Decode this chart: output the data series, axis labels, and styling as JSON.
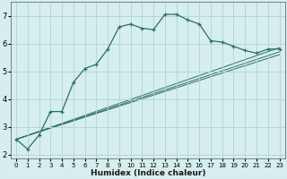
{
  "xlabel": "Humidex (Indice chaleur)",
  "background_color": "#d6eeee",
  "grid_color": "#aed4d4",
  "line_color": "#2a6e68",
  "xlim": [
    -0.5,
    23.5
  ],
  "ylim": [
    1.85,
    7.5
  ],
  "yticks": [
    2,
    3,
    4,
    5,
    6,
    7
  ],
  "curve1_x": [
    0,
    1,
    2,
    3,
    4,
    5,
    6,
    7,
    8,
    9,
    10,
    11,
    12,
    13,
    14,
    15,
    16,
    17,
    18,
    19,
    20,
    21,
    22,
    23
  ],
  "curve1_y": [
    2.55,
    2.2,
    2.7,
    3.55,
    3.55,
    4.6,
    5.1,
    5.25,
    5.8,
    6.6,
    6.7,
    6.55,
    6.5,
    7.05,
    7.05,
    6.85,
    6.7,
    6.1,
    6.05,
    5.9,
    5.75,
    5.65,
    5.8,
    5.8
  ],
  "line1_x": [
    0,
    23
  ],
  "line1_y": [
    2.55,
    5.85
  ],
  "line2_x": [
    0,
    23
  ],
  "line2_y": [
    2.55,
    5.7
  ],
  "line3_x": [
    0,
    23
  ],
  "line3_y": [
    2.55,
    5.6
  ]
}
